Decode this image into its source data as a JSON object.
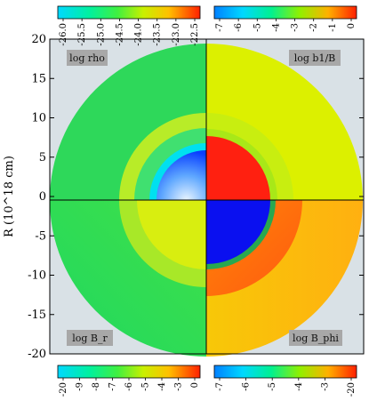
{
  "chart_data": {
    "type": "heatmap",
    "ylabel": "R (10^18 cm)",
    "ylim": [
      -20,
      20
    ],
    "y_ticks": [
      20,
      15,
      10,
      5,
      0,
      -5,
      -10,
      -15,
      -20
    ],
    "quadrants": [
      {
        "label": "log rho",
        "position": "top-left"
      },
      {
        "label": "log b1/B",
        "position": "top-right"
      },
      {
        "label": "log B_r",
        "position": "bottom-left"
      },
      {
        "label": "log B_phi",
        "position": "bottom-right"
      }
    ],
    "colorbars": [
      {
        "for": "log rho",
        "position": "top-left",
        "ticks": [
          "-26.0",
          "-25.5",
          "-25.0",
          "-24.5",
          "-24.0",
          "-23.5",
          "-23.0",
          "-22.5"
        ]
      },
      {
        "for": "log b1/B",
        "position": "top-right",
        "ticks": [
          "-7",
          "-6",
          "-5",
          "-4",
          "-3",
          "-2",
          "-1",
          "0"
        ]
      },
      {
        "for": "log B_r",
        "position": "bottom-left",
        "ticks": [
          "-20",
          "-9",
          "-8",
          "-7",
          "-6",
          "-5",
          "-4",
          "-3",
          "0"
        ]
      },
      {
        "for": "log B_phi",
        "position": "bottom-right",
        "ticks": [
          "-7",
          "-6",
          "-5",
          "-4",
          "-3",
          "-20"
        ]
      }
    ],
    "grid": false
  }
}
